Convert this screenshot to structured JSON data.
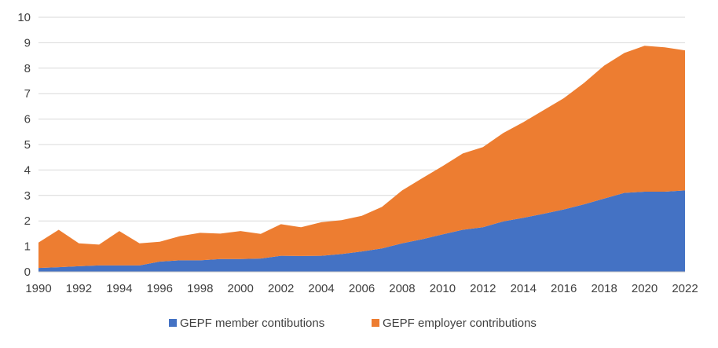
{
  "chart_data": {
    "type": "area",
    "stacked": true,
    "title": "",
    "xlabel": "",
    "ylabel": "",
    "x": [
      1990,
      1991,
      1992,
      1993,
      1994,
      1995,
      1996,
      1997,
      1998,
      1999,
      2000,
      2001,
      2002,
      2003,
      2004,
      2005,
      2006,
      2007,
      2008,
      2009,
      2010,
      2011,
      2012,
      2013,
      2014,
      2015,
      2016,
      2017,
      2018,
      2019,
      2020,
      2021,
      2022
    ],
    "xticks": [
      "1990",
      "1992",
      "1994",
      "1996",
      "1998",
      "2000",
      "2002",
      "2004",
      "2006",
      "2008",
      "2010",
      "2012",
      "2014",
      "2016",
      "2018",
      "2020",
      "2022"
    ],
    "yticks": [
      "0",
      "1",
      "2",
      "3",
      "4",
      "5",
      "6",
      "7",
      "8",
      "9",
      "10"
    ],
    "ylim": [
      0,
      10
    ],
    "xlim": [
      1990,
      2022
    ],
    "grid": "horizontal",
    "legend_position": "bottom",
    "series": [
      {
        "name": "GEPF member contibutions",
        "color": "#4472C4",
        "values": [
          0.15,
          0.18,
          0.22,
          0.25,
          0.25,
          0.25,
          0.4,
          0.45,
          0.45,
          0.5,
          0.5,
          0.52,
          0.63,
          0.62,
          0.63,
          0.7,
          0.8,
          0.92,
          1.12,
          1.28,
          1.47,
          1.65,
          1.75,
          1.98,
          2.12,
          2.28,
          2.45,
          2.65,
          2.88,
          3.1,
          3.15,
          3.15,
          3.2
        ]
      },
      {
        "name": "GEPF employer contributions",
        "color": "#ED7D31",
        "values": [
          1.0,
          1.47,
          0.9,
          0.82,
          1.35,
          0.87,
          0.78,
          0.95,
          1.08,
          1.0,
          1.1,
          0.97,
          1.24,
          1.13,
          1.32,
          1.33,
          1.4,
          1.63,
          2.08,
          2.4,
          2.68,
          3.0,
          3.15,
          3.47,
          3.76,
          4.07,
          4.37,
          4.77,
          5.22,
          5.5,
          5.73,
          5.67,
          5.5
        ]
      }
    ]
  }
}
